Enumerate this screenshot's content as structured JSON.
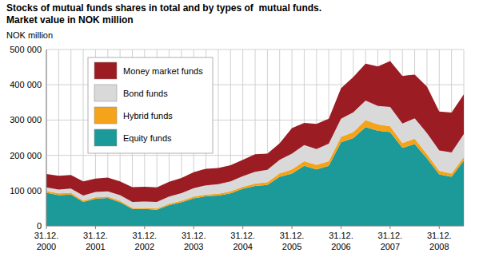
{
  "chart_data": {
    "type": "area",
    "title": "Stocks of mutual funds shares in total and by types of  mutual funds.",
    "subtitle": "Market value in NOK million",
    "y_label": "NOK million",
    "stacked": true,
    "grid": true,
    "legend": "upper-left",
    "categories": [
      "31.12. 2000",
      null,
      null,
      null,
      "31.12. 2001",
      null,
      null,
      null,
      "31.12. 2002",
      null,
      null,
      null,
      "31.12. 2003",
      null,
      null,
      null,
      "31.12. 2004",
      null,
      null,
      null,
      "31.12. 2005",
      null,
      null,
      null,
      "31.12. 2006",
      null,
      null,
      null,
      "31.12. 2007",
      null,
      null,
      null,
      "31.12. 2008",
      null,
      null
    ],
    "ylim": [
      0,
      500000
    ],
    "yticks": [
      0,
      {
        "value": 100000,
        "label": "100 000"
      },
      {
        "value": 200000,
        "label": "200 000"
      },
      {
        "value": 300000,
        "label": "300 000"
      },
      {
        "value": 400000,
        "label": "400 000"
      },
      {
        "value": 500000,
        "label": "500 000"
      }
    ],
    "series": [
      {
        "name": "Equity funds",
        "color": "#1c9a9a",
        "values": [
          94000,
          87000,
          89000,
          68000,
          77000,
          79000,
          67000,
          48000,
          48000,
          46000,
          59000,
          67000,
          78000,
          84000,
          86000,
          92000,
          105000,
          113000,
          116000,
          139000,
          148000,
          170000,
          160000,
          170000,
          237000,
          249000,
          280000,
          270000,
          266000,
          221000,
          232000,
          191000,
          146000,
          139000,
          185000
        ]
      },
      {
        "name": "Hybrid funds",
        "color": "#f5a31a",
        "values": [
          5000,
          5000,
          5000,
          4000,
          4000,
          4000,
          4000,
          3000,
          3000,
          3000,
          4000,
          4000,
          5000,
          5000,
          5000,
          6000,
          6000,
          7000,
          8000,
          10000,
          12000,
          13000,
          13000,
          13000,
          15000,
          17000,
          20000,
          18000,
          16000,
          14000,
          15000,
          12000,
          10000,
          9000,
          10000
        ]
      },
      {
        "name": "Bond funds",
        "color": "#d9d9d9",
        "values": [
          10000,
          11000,
          12000,
          14000,
          15000,
          15000,
          16000,
          17000,
          18000,
          19000,
          20000,
          22000,
          24000,
          26000,
          27000,
          28000,
          30000,
          33000,
          35000,
          38000,
          45000,
          46000,
          45000,
          50000,
          52000,
          56000,
          55000,
          52000,
          55000,
          55000,
          58000,
          60000,
          58000,
          60000,
          65000
        ]
      },
      {
        "name": "Money market funds",
        "color": "#9b1c23",
        "values": [
          38000,
          39000,
          38000,
          40000,
          38000,
          39000,
          39000,
          42000,
          42000,
          41000,
          42000,
          43000,
          45000,
          47000,
          46000,
          46000,
          46000,
          50000,
          46000,
          47000,
          72000,
          63000,
          71000,
          71000,
          86000,
          100000,
          105000,
          112000,
          130000,
          135000,
          124000,
          132000,
          110000,
          113000,
          113000
        ]
      }
    ]
  }
}
